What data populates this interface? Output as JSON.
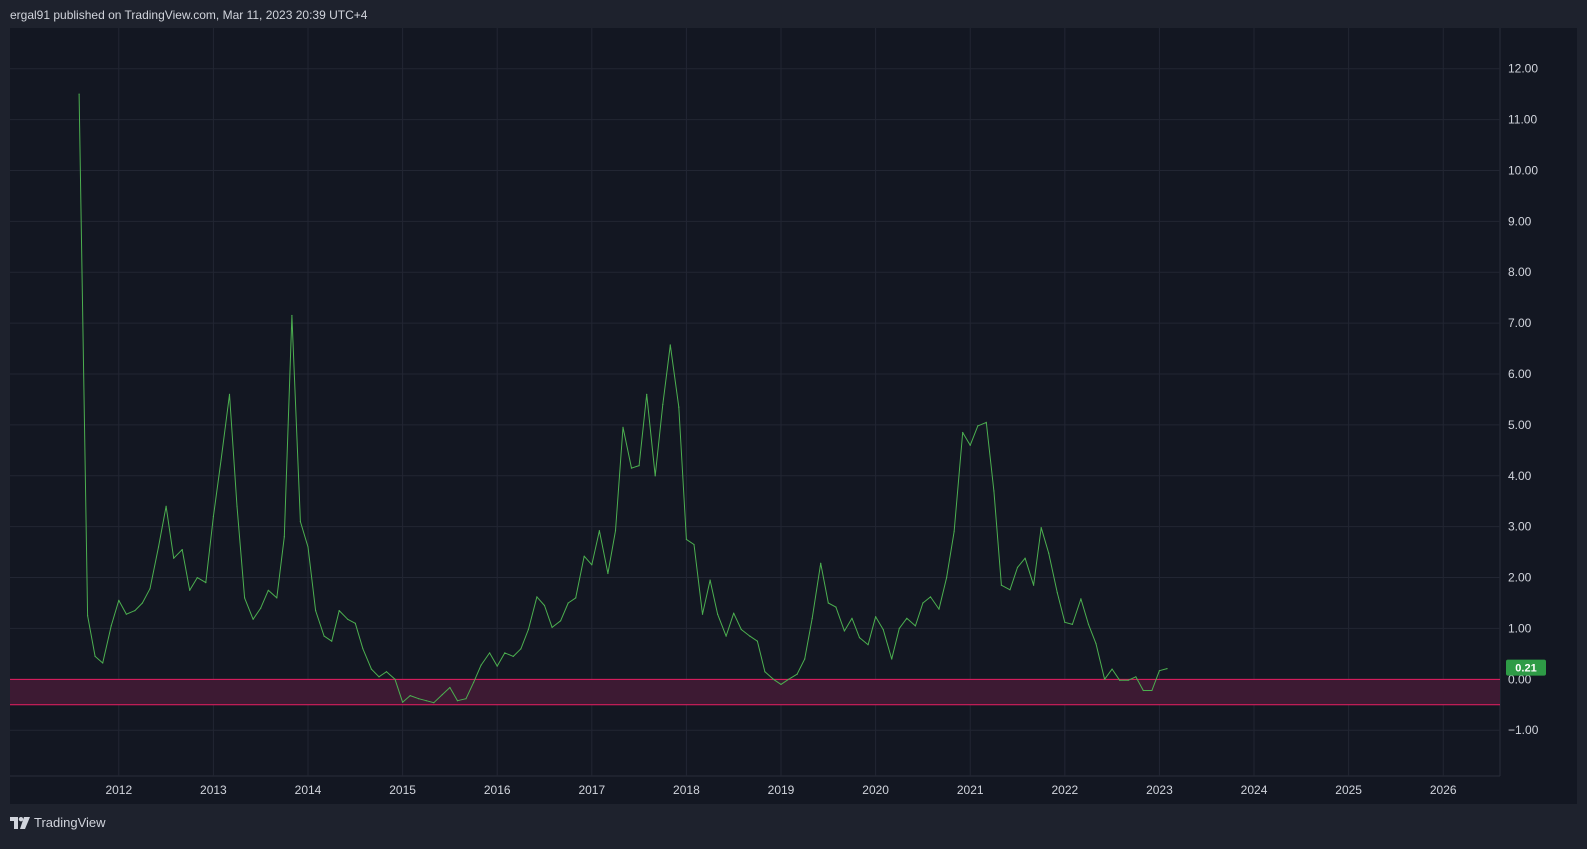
{
  "header": {
    "published": "ergal91 published on TradingView.com, Mar 11, 2023 20:39 UTC+4"
  },
  "footer": {
    "brand": "TradingView",
    "logo_icon": "tradingview-logo-icon"
  },
  "chart_data": {
    "type": "line",
    "title": "",
    "xlabel": "",
    "ylabel": "",
    "x_range": [
      2010.85,
      2026.6
    ],
    "ylim": [
      -1.9,
      12.8
    ],
    "grid": true,
    "x_ticks": [
      "2012",
      "2013",
      "2014",
      "2015",
      "2016",
      "2017",
      "2018",
      "2019",
      "2020",
      "2021",
      "2022",
      "2023",
      "2024",
      "2025",
      "2026"
    ],
    "y_ticks": [
      "12.00",
      "11.00",
      "10.00",
      "9.00",
      "8.00",
      "7.00",
      "6.00",
      "5.00",
      "4.00",
      "3.00",
      "2.00",
      "1.00",
      "0.00",
      "−1.00"
    ],
    "y_tick_values": [
      12,
      11,
      10,
      9,
      8,
      7,
      6,
      5,
      4,
      3,
      2,
      1,
      0,
      -1
    ],
    "band": {
      "from": -0.5,
      "to": 0.0,
      "fill": "#3d1a33",
      "stroke": "#e91e63"
    },
    "last_value_label": "0.21",
    "colors": {
      "line": "#4caf50",
      "badge": "#2e9b46",
      "background": "#131722",
      "grid": "#222633"
    },
    "series": [
      {
        "x": [
          2011.58,
          2011.67,
          2011.75,
          2011.83,
          2011.92,
          2012.0,
          2012.08,
          2012.17,
          2012.25,
          2012.33,
          2012.42,
          2012.5,
          2012.58,
          2012.67,
          2012.75,
          2012.83,
          2012.92,
          2013.0,
          2013.08,
          2013.17,
          2013.25,
          2013.33,
          2013.42,
          2013.5,
          2013.58,
          2013.67,
          2013.75,
          2013.83,
          2013.92,
          2014.0,
          2014.08,
          2014.17,
          2014.25,
          2014.33,
          2014.42,
          2014.5,
          2014.58,
          2014.67,
          2014.75,
          2014.83,
          2014.92,
          2015.0,
          2015.08,
          2015.17,
          2015.25,
          2015.33,
          2015.42,
          2015.5,
          2015.58,
          2015.67,
          2015.75,
          2015.83,
          2015.92,
          2016.0,
          2016.08,
          2016.17,
          2016.25,
          2016.33,
          2016.42,
          2016.5,
          2016.58,
          2016.67,
          2016.75,
          2016.83,
          2016.92,
          2017.0,
          2017.08,
          2017.17,
          2017.25,
          2017.33,
          2017.42,
          2017.5,
          2017.58,
          2017.67,
          2017.75,
          2017.83,
          2017.92,
          2018.0,
          2018.08,
          2018.17,
          2018.25,
          2018.33,
          2018.42,
          2018.5,
          2018.58,
          2018.67,
          2018.75,
          2018.83,
          2018.92,
          2019.0,
          2019.08,
          2019.17,
          2019.25,
          2019.33,
          2019.42,
          2019.5,
          2019.58,
          2019.67,
          2019.75,
          2019.83,
          2019.92,
          2020.0,
          2020.08,
          2020.17,
          2020.25,
          2020.33,
          2020.42,
          2020.5,
          2020.58,
          2020.67,
          2020.75,
          2020.83,
          2020.92,
          2021.0,
          2021.08,
          2021.17,
          2021.25,
          2021.33,
          2021.42,
          2021.5,
          2021.58,
          2021.67,
          2021.75,
          2021.83,
          2021.92,
          2022.0,
          2022.08,
          2022.17,
          2022.25,
          2022.33,
          2022.42,
          2022.5,
          2022.58,
          2022.67,
          2022.75,
          2022.83,
          2022.92,
          2023.0,
          2023.08
        ],
        "values": [
          11.5,
          1.25,
          0.45,
          0.32,
          1.05,
          1.55,
          1.28,
          1.35,
          1.5,
          1.78,
          2.6,
          3.4,
          2.38,
          2.55,
          1.75,
          2.0,
          1.9,
          3.2,
          4.3,
          5.6,
          3.4,
          1.6,
          1.18,
          1.4,
          1.75,
          1.6,
          2.8,
          7.15,
          3.1,
          2.6,
          1.35,
          0.85,
          0.75,
          1.35,
          1.18,
          1.1,
          0.6,
          0.2,
          0.05,
          0.15,
          0.0,
          -0.45,
          -0.32,
          -0.38,
          -0.42,
          -0.46,
          -0.3,
          -0.16,
          -0.42,
          -0.38,
          -0.06,
          0.28,
          0.52,
          0.26,
          0.52,
          0.45,
          0.6,
          0.98,
          1.62,
          1.45,
          1.02,
          1.15,
          1.5,
          1.6,
          2.42,
          2.25,
          2.92,
          2.08,
          2.92,
          4.95,
          4.15,
          4.2,
          5.6,
          4.0,
          5.4,
          6.57,
          5.35,
          2.75,
          2.65,
          1.28,
          1.95,
          1.28,
          0.85,
          1.3,
          0.98,
          0.85,
          0.75,
          0.15,
          0.0,
          -0.1,
          0.0,
          0.1,
          0.4,
          1.2,
          2.28,
          1.5,
          1.42,
          0.95,
          1.2,
          0.82,
          0.68,
          1.23,
          0.98,
          0.4,
          1.0,
          1.2,
          1.05,
          1.5,
          1.62,
          1.38,
          2.0,
          2.9,
          4.85,
          4.6,
          4.98,
          5.05,
          3.7,
          1.85,
          1.76,
          2.2,
          2.38,
          1.85,
          2.98,
          2.48,
          1.7,
          1.12,
          1.08,
          1.58,
          1.08,
          0.7,
          0.0,
          0.2,
          -0.02,
          -0.02,
          0.05,
          -0.22,
          -0.22,
          0.17,
          0.21
        ]
      }
    ]
  }
}
